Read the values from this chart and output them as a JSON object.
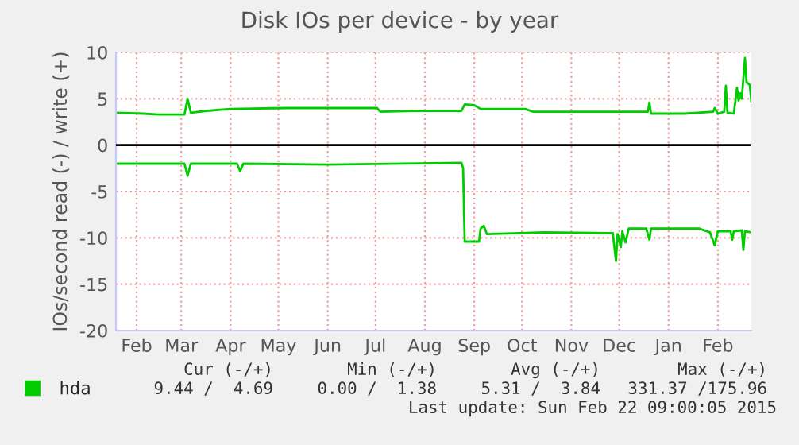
{
  "chart_data": {
    "type": "line",
    "title": "Disk IOs per device - by year",
    "ylabel": "IOs/second read (-) / write (+)",
    "xlim": [
      "2014-01-19",
      "2015-02-22"
    ],
    "ylim": [
      -20,
      10
    ],
    "yticks": [
      -20,
      -15,
      -10,
      -5,
      0,
      5,
      10
    ],
    "xticks": [
      {
        "value": "2014-02-01",
        "label": "Feb"
      },
      {
        "value": "2014-03-01",
        "label": "Mar"
      },
      {
        "value": "2014-04-01",
        "label": "Apr"
      },
      {
        "value": "2014-05-01",
        "label": "May"
      },
      {
        "value": "2014-06-01",
        "label": "Jun"
      },
      {
        "value": "2014-07-01",
        "label": "Jul"
      },
      {
        "value": "2014-08-01",
        "label": "Aug"
      },
      {
        "value": "2014-09-01",
        "label": "Sep"
      },
      {
        "value": "2014-10-01",
        "label": "Oct"
      },
      {
        "value": "2014-11-01",
        "label": "Nov"
      },
      {
        "value": "2014-12-01",
        "label": "Dec"
      },
      {
        "value": "2015-01-01",
        "label": "Jan"
      },
      {
        "value": "2015-02-01",
        "label": "Feb"
      }
    ],
    "grid": true,
    "legend": "bottom",
    "marker": "none",
    "line_style": "solid",
    "ref_lines": [
      {
        "axis": "y",
        "value": 0,
        "label": null,
        "color": "#000000"
      }
    ],
    "series": [
      {
        "name": "hda",
        "color": "#00cc00",
        "x": [
          "2014-01-19",
          "2014-02-05",
          "2014-02-15",
          "2014-03-03",
          "2014-03-05",
          "2014-03-07",
          "2014-03-17",
          "2014-04-01",
          "2014-05-06",
          "2014-06-05",
          "2014-07-02",
          "2014-07-04",
          "2014-07-25",
          "2014-08-24",
          "2014-08-26",
          "2014-09-01",
          "2014-09-05",
          "2014-10-03",
          "2014-10-08",
          "2014-12-19",
          "2014-12-20",
          "2014-12-21",
          "2015-01-11",
          "2015-01-29",
          "2015-01-30",
          "2015-02-01",
          "2015-02-05",
          "2015-02-06",
          "2015-02-07",
          "2015-02-11",
          "2015-02-13",
          "2015-02-14",
          "2015-02-15",
          "2015-02-16",
          "2015-02-18",
          "2015-02-19",
          "2015-02-21",
          "2015-02-22"
        ],
        "values": [
          3.5,
          3.4,
          3.3,
          3.3,
          5.0,
          3.5,
          3.7,
          3.9,
          4.0,
          4.0,
          4.0,
          3.6,
          3.7,
          3.7,
          4.4,
          4.3,
          3.9,
          3.9,
          3.6,
          3.6,
          4.6,
          3.4,
          3.4,
          3.6,
          4.0,
          3.4,
          3.6,
          6.4,
          3.5,
          3.4,
          6.2,
          4.8,
          5.6,
          5.0,
          9.4,
          6.8,
          6.5,
          4.7
        ]
      },
      {
        "color": "#00cc00",
        "x": [
          "2014-01-19",
          "2014-03-03",
          "2014-03-05",
          "2014-03-07",
          "2014-04-05",
          "2014-04-07",
          "2014-04-09",
          "2014-06-01",
          "2014-08-24",
          "2014-08-25",
          "2014-08-26",
          "2014-09-04",
          "2014-09-05",
          "2014-09-07",
          "2014-09-09",
          "2014-10-15",
          "2014-11-27",
          "2014-11-29",
          "2014-11-30",
          "2014-12-02",
          "2014-12-03",
          "2014-12-05",
          "2014-12-07",
          "2014-12-18",
          "2014-12-20",
          "2014-12-21",
          "2015-01-20",
          "2015-01-27",
          "2015-01-30",
          "2015-02-01",
          "2015-02-09",
          "2015-02-10",
          "2015-02-11",
          "2015-02-16",
          "2015-02-17",
          "2015-02-18",
          "2015-02-22"
        ],
        "values": [
          -2.0,
          -2.0,
          -3.3,
          -2.0,
          -2.0,
          -2.8,
          -2.0,
          -2.1,
          -1.9,
          -2.5,
          -10.4,
          -10.4,
          -9.0,
          -8.7,
          -9.6,
          -9.4,
          -9.5,
          -12.5,
          -9.6,
          -11.0,
          -9.3,
          -10.5,
          -9.0,
          -9.0,
          -10.2,
          -9.0,
          -9.0,
          -9.4,
          -10.8,
          -9.3,
          -9.3,
          -10.2,
          -9.3,
          -9.2,
          -11.3,
          -9.3,
          -9.4
        ]
      }
    ],
    "annotations": [
      "Cur (-/+)",
      "Min (-/+)",
      "Avg (-/+)",
      "Max (-/+)",
      "9.44 /  4.69",
      "0.00 /  1.38",
      "5.31 /  3.84",
      "331.37 /175.96",
      "Last update: Sun Feb 22 09:00:05 2015"
    ]
  }
}
